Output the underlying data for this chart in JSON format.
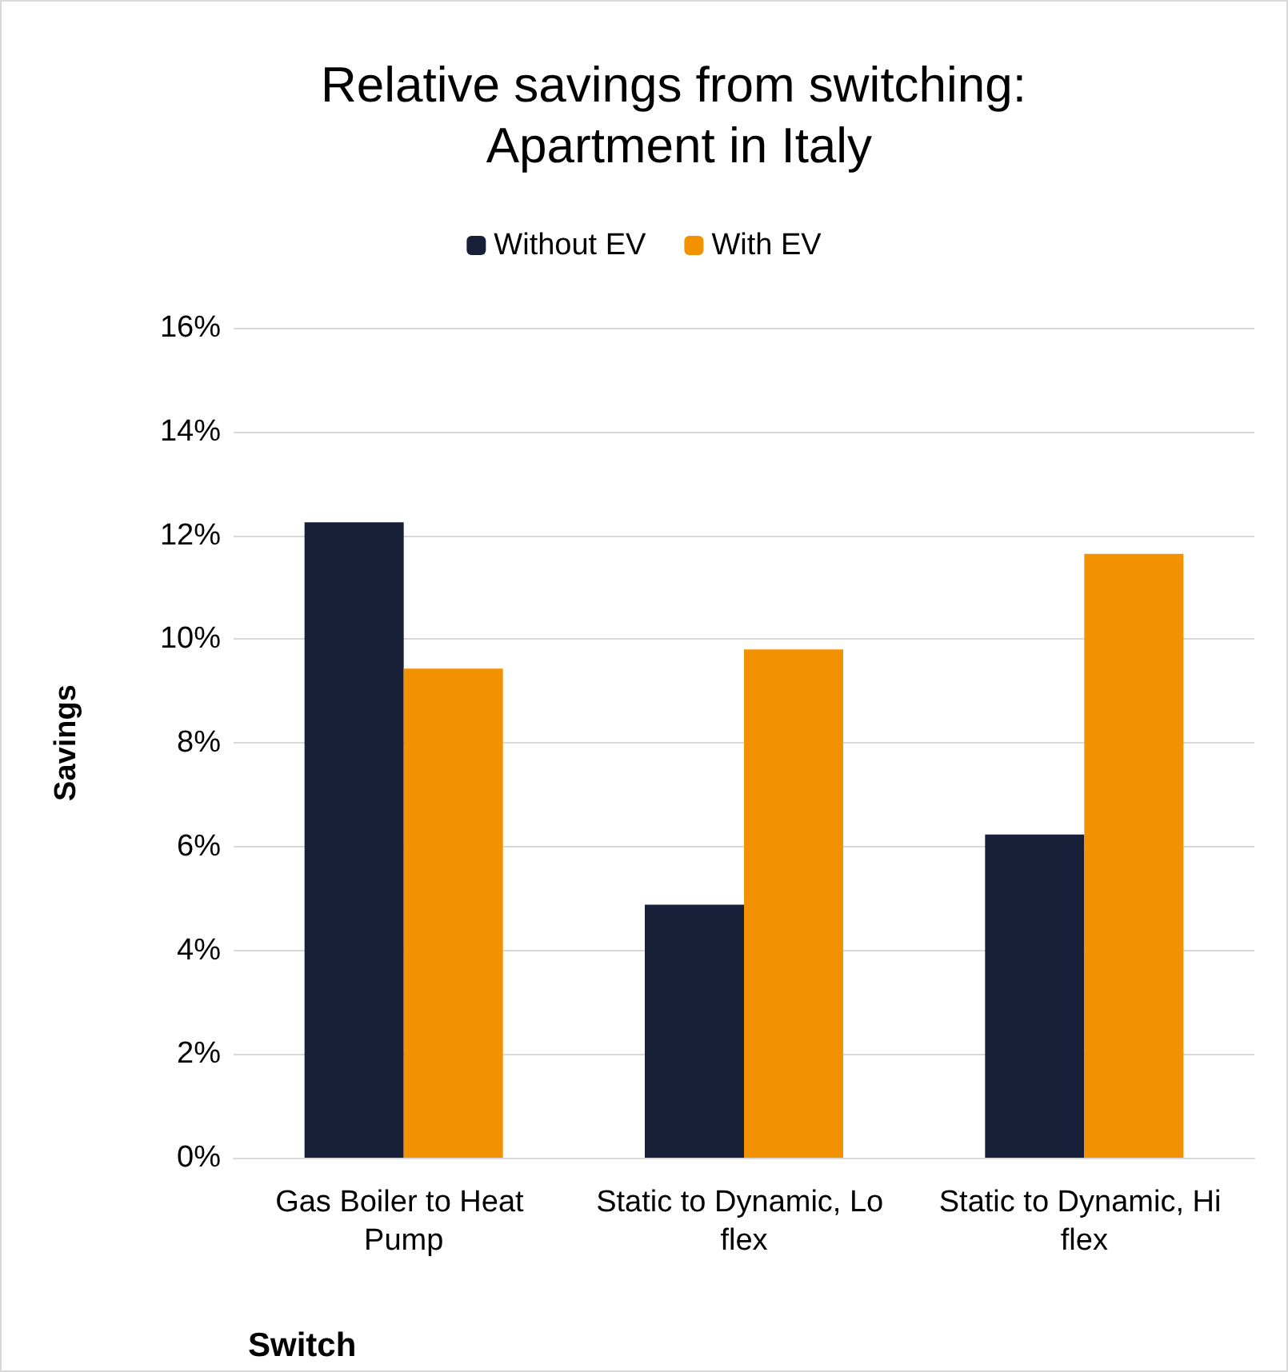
{
  "chart_data": {
    "type": "bar",
    "title": "Relative savings from switching: Apartment in Italy",
    "xlabel": "Switch",
    "ylabel": "Savings",
    "categories": [
      "Gas Boiler to Heat Pump",
      "Static to Dynamic, Lo flex",
      "Static to Dynamic, Hi flex"
    ],
    "series": [
      {
        "name": "Without EV",
        "color": "#172038",
        "values": [
          12.25,
          4.88,
          6.23
        ]
      },
      {
        "name": "With EV",
        "color": "#f39200",
        "values": [
          9.43,
          9.8,
          11.64
        ]
      }
    ],
    "ylim": [
      0,
      16
    ],
    "yticks": [
      {
        "value": 0,
        "label": "0%"
      },
      {
        "value": 2,
        "label": "2%"
      },
      {
        "value": 4,
        "label": "4%"
      },
      {
        "value": 6,
        "label": "6%"
      },
      {
        "value": 8,
        "label": "8%"
      },
      {
        "value": 10,
        "label": "10%"
      },
      {
        "value": 12,
        "label": "12%"
      },
      {
        "value": 14,
        "label": "14%"
      },
      {
        "value": 16,
        "label": "16%"
      }
    ],
    "grid": "y",
    "legend": "top"
  }
}
